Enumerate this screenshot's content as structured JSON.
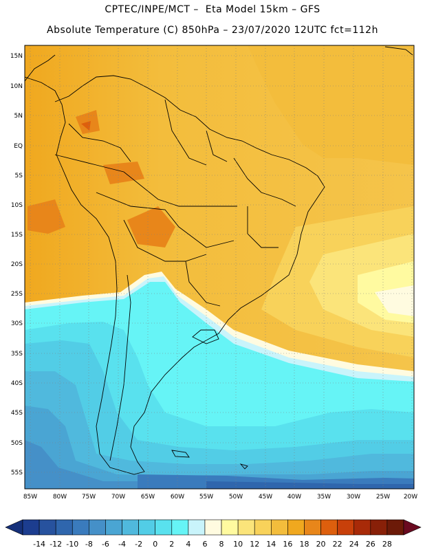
{
  "header": {
    "line1": "CPTEC/INPE/MCT –  Eta Model 15km – GFS",
    "line2": "Absolute Temperature (C) 850hPa – 23/07/2020 12UTC fct=112h"
  },
  "map": {
    "lat_labels": [
      "15N",
      "10N",
      "5N",
      "EQ",
      "5S",
      "10S",
      "15S",
      "20S",
      "25S",
      "30S",
      "35S",
      "40S",
      "45S",
      "50S",
      "55S"
    ],
    "lon_labels": [
      "85W",
      "80W",
      "75W",
      "70W",
      "65W",
      "60W",
      "55W",
      "50W",
      "45W",
      "40W",
      "35W",
      "30W",
      "25W",
      "20W"
    ]
  },
  "colorbar": {
    "labels": [
      "-14",
      "-12",
      "-10",
      "-8",
      "-6",
      "-4",
      "-2",
      "0",
      "2",
      "4",
      "6",
      "8",
      "10",
      "12",
      "14",
      "16",
      "18",
      "20",
      "22",
      "24",
      "26",
      "28"
    ],
    "colors": [
      "#1c3d8f",
      "#27529e",
      "#2f66ad",
      "#3a7bbd",
      "#4590c8",
      "#4aa5d3",
      "#50b9dd",
      "#52cde6",
      "#59e1ee",
      "#66f4f6",
      "#c9f4fb",
      "#fffbe0",
      "#fffaa0",
      "#fbe47a",
      "#f8d25a",
      "#f3bd3c",
      "#f0a81f",
      "#e8861a",
      "#dd5f0d",
      "#c8400a",
      "#a82a08",
      "#882008",
      "#6c1a08"
    ],
    "low_arrow_color": "#15307a",
    "high_arrow_color": "#6a0a20"
  }
}
